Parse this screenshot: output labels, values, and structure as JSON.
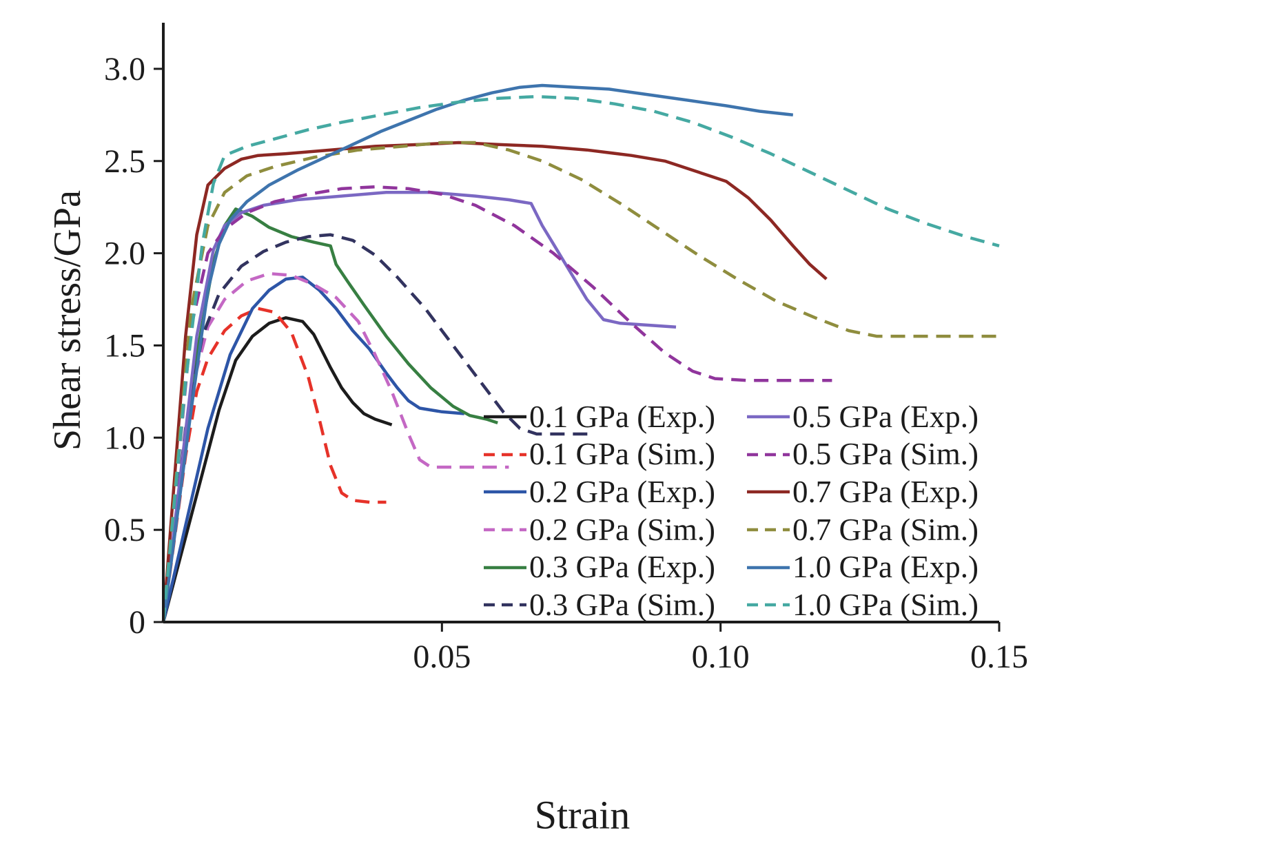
{
  "figure": {
    "background": "#ffffff",
    "text_color": "#1c1c1c"
  },
  "chart_data": {
    "type": "line",
    "title": "",
    "xlabel": "Strain",
    "ylabel": "Shear stress/GPa",
    "xlim": [
      0,
      0.15
    ],
    "ylim": [
      0,
      3.25
    ],
    "grid": false,
    "legend": {
      "columns": 2,
      "frame": false,
      "position": "lower right"
    },
    "xticks": [
      {
        "value": 0.05,
        "label": "0.05"
      },
      {
        "value": 0.1,
        "label": "0.10"
      },
      {
        "value": 0.15,
        "label": "0.15"
      }
    ],
    "yticks": [
      {
        "value": 0,
        "label": "0"
      },
      {
        "value": 0.5,
        "label": "0.5"
      },
      {
        "value": 1.0,
        "label": "1.0"
      },
      {
        "value": 1.5,
        "label": "1.5"
      },
      {
        "value": 2.0,
        "label": "2.0"
      },
      {
        "value": 2.5,
        "label": "2.5"
      },
      {
        "value": 3.0,
        "label": "3.0"
      }
    ],
    "series": [
      {
        "id": "0p1-exp",
        "name": "0.1 GPa (Exp.)",
        "color": "#1c1c1c",
        "style": "solid",
        "points": [
          [
            0,
            0
          ],
          [
            0.01,
            1.15
          ],
          [
            0.013,
            1.42
          ],
          [
            0.016,
            1.55
          ],
          [
            0.019,
            1.62
          ],
          [
            0.022,
            1.65
          ],
          [
            0.025,
            1.63
          ],
          [
            0.027,
            1.56
          ],
          [
            0.0285,
            1.47
          ],
          [
            0.03,
            1.38
          ],
          [
            0.032,
            1.27
          ],
          [
            0.034,
            1.19
          ],
          [
            0.036,
            1.13
          ],
          [
            0.038,
            1.1
          ],
          [
            0.041,
            1.07
          ]
        ]
      },
      {
        "id": "0p1-sim",
        "name": "0.1 GPa (Sim.)",
        "color": "#e63229",
        "style": "dashed",
        "points": [
          [
            0,
            0
          ],
          [
            0.004,
            0.9
          ],
          [
            0.006,
            1.25
          ],
          [
            0.008,
            1.43
          ],
          [
            0.011,
            1.58
          ],
          [
            0.014,
            1.66
          ],
          [
            0.017,
            1.7
          ],
          [
            0.02,
            1.68
          ],
          [
            0.023,
            1.57
          ],
          [
            0.026,
            1.33
          ],
          [
            0.028,
            1.1
          ],
          [
            0.03,
            0.85
          ],
          [
            0.032,
            0.7
          ],
          [
            0.034,
            0.66
          ],
          [
            0.037,
            0.65
          ],
          [
            0.04,
            0.65
          ]
        ]
      },
      {
        "id": "0p2-exp",
        "name": "0.2 GPa (Exp.)",
        "color": "#2d55a7",
        "style": "solid",
        "points": [
          [
            0,
            0
          ],
          [
            0.008,
            1.05
          ],
          [
            0.012,
            1.45
          ],
          [
            0.016,
            1.7
          ],
          [
            0.019,
            1.8
          ],
          [
            0.022,
            1.86
          ],
          [
            0.025,
            1.87
          ],
          [
            0.028,
            1.8
          ],
          [
            0.031,
            1.7
          ],
          [
            0.034,
            1.58
          ],
          [
            0.037,
            1.48
          ],
          [
            0.04,
            1.35
          ],
          [
            0.042,
            1.27
          ],
          [
            0.044,
            1.2
          ],
          [
            0.046,
            1.16
          ],
          [
            0.05,
            1.14
          ],
          [
            0.054,
            1.13
          ]
        ]
      },
      {
        "id": "0p2-sim",
        "name": "0.2 GPa (Sim.)",
        "color": "#c468c4",
        "style": "dashed",
        "points": [
          [
            0,
            0
          ],
          [
            0.005,
            1.25
          ],
          [
            0.008,
            1.6
          ],
          [
            0.011,
            1.75
          ],
          [
            0.015,
            1.85
          ],
          [
            0.019,
            1.89
          ],
          [
            0.023,
            1.88
          ],
          [
            0.027,
            1.83
          ],
          [
            0.031,
            1.76
          ],
          [
            0.035,
            1.63
          ],
          [
            0.038,
            1.45
          ],
          [
            0.041,
            1.25
          ],
          [
            0.044,
            1.02
          ],
          [
            0.046,
            0.88
          ],
          [
            0.048,
            0.84
          ],
          [
            0.053,
            0.84
          ],
          [
            0.058,
            0.84
          ],
          [
            0.062,
            0.84
          ]
        ]
      },
      {
        "id": "0p3-exp",
        "name": "0.3 GPa (Exp.)",
        "color": "#377f42",
        "style": "solid",
        "points": [
          [
            0,
            0
          ],
          [
            0.006,
            1.45
          ],
          [
            0.009,
            1.95
          ],
          [
            0.011,
            2.15
          ],
          [
            0.013,
            2.24
          ],
          [
            0.016,
            2.2
          ],
          [
            0.019,
            2.14
          ],
          [
            0.023,
            2.09
          ],
          [
            0.027,
            2.06
          ],
          [
            0.03,
            2.04
          ],
          [
            0.031,
            1.94
          ],
          [
            0.033,
            1.85
          ],
          [
            0.036,
            1.72
          ],
          [
            0.04,
            1.55
          ],
          [
            0.044,
            1.4
          ],
          [
            0.048,
            1.27
          ],
          [
            0.052,
            1.17
          ],
          [
            0.055,
            1.12
          ],
          [
            0.058,
            1.1
          ],
          [
            0.06,
            1.08
          ]
        ]
      },
      {
        "id": "0p3-sim",
        "name": "0.3 GPa (Sim.)",
        "color": "#32335f",
        "style": "dashed",
        "points": [
          [
            0,
            0
          ],
          [
            0.004,
            1.05
          ],
          [
            0.007,
            1.55
          ],
          [
            0.01,
            1.78
          ],
          [
            0.014,
            1.93
          ],
          [
            0.018,
            2.01
          ],
          [
            0.022,
            2.06
          ],
          [
            0.026,
            2.09
          ],
          [
            0.03,
            2.1
          ],
          [
            0.034,
            2.07
          ],
          [
            0.038,
            1.99
          ],
          [
            0.042,
            1.87
          ],
          [
            0.047,
            1.7
          ],
          [
            0.052,
            1.5
          ],
          [
            0.057,
            1.3
          ],
          [
            0.061,
            1.14
          ],
          [
            0.064,
            1.05
          ],
          [
            0.067,
            1.02
          ],
          [
            0.072,
            1.02
          ],
          [
            0.077,
            1.02
          ]
        ]
      },
      {
        "id": "0p5-exp",
        "name": "0.5 GPa (Exp.)",
        "color": "#7b68c3",
        "style": "solid",
        "points": [
          [
            0,
            0
          ],
          [
            0.006,
            1.55
          ],
          [
            0.009,
            2.02
          ],
          [
            0.011,
            2.15
          ],
          [
            0.014,
            2.22
          ],
          [
            0.018,
            2.26
          ],
          [
            0.024,
            2.29
          ],
          [
            0.032,
            2.31
          ],
          [
            0.04,
            2.33
          ],
          [
            0.048,
            2.33
          ],
          [
            0.056,
            2.31
          ],
          [
            0.062,
            2.29
          ],
          [
            0.066,
            2.27
          ],
          [
            0.068,
            2.15
          ],
          [
            0.07,
            2.05
          ],
          [
            0.073,
            1.9
          ],
          [
            0.076,
            1.75
          ],
          [
            0.079,
            1.64
          ],
          [
            0.082,
            1.62
          ],
          [
            0.087,
            1.61
          ],
          [
            0.092,
            1.6
          ]
        ]
      },
      {
        "id": "0p5-sim",
        "name": "0.5 GPa (Sim.)",
        "color": "#90359c",
        "style": "dashed",
        "points": [
          [
            0,
            0
          ],
          [
            0.005,
            1.6
          ],
          [
            0.008,
            2.0
          ],
          [
            0.011,
            2.13
          ],
          [
            0.015,
            2.22
          ],
          [
            0.02,
            2.28
          ],
          [
            0.026,
            2.32
          ],
          [
            0.032,
            2.35
          ],
          [
            0.038,
            2.36
          ],
          [
            0.044,
            2.35
          ],
          [
            0.05,
            2.32
          ],
          [
            0.056,
            2.26
          ],
          [
            0.063,
            2.15
          ],
          [
            0.07,
            2.0
          ],
          [
            0.077,
            1.82
          ],
          [
            0.084,
            1.62
          ],
          [
            0.09,
            1.46
          ],
          [
            0.095,
            1.36
          ],
          [
            0.099,
            1.32
          ],
          [
            0.105,
            1.31
          ],
          [
            0.112,
            1.31
          ],
          [
            0.12,
            1.31
          ]
        ]
      },
      {
        "id": "0p7-exp",
        "name": "0.7 GPa (Exp.)",
        "color": "#8d2823",
        "style": "solid",
        "points": [
          [
            0,
            0
          ],
          [
            0.004,
            1.55
          ],
          [
            0.006,
            2.1
          ],
          [
            0.008,
            2.37
          ],
          [
            0.011,
            2.46
          ],
          [
            0.014,
            2.51
          ],
          [
            0.017,
            2.53
          ],
          [
            0.022,
            2.54
          ],
          [
            0.03,
            2.56
          ],
          [
            0.038,
            2.58
          ],
          [
            0.046,
            2.59
          ],
          [
            0.053,
            2.6
          ],
          [
            0.06,
            2.59
          ],
          [
            0.068,
            2.58
          ],
          [
            0.076,
            2.56
          ],
          [
            0.084,
            2.53
          ],
          [
            0.09,
            2.5
          ],
          [
            0.096,
            2.44
          ],
          [
            0.101,
            2.39
          ],
          [
            0.105,
            2.3
          ],
          [
            0.109,
            2.18
          ],
          [
            0.113,
            2.04
          ],
          [
            0.116,
            1.94
          ],
          [
            0.119,
            1.86
          ]
        ]
      },
      {
        "id": "0p7-sim",
        "name": "0.7 GPa (Sim.)",
        "color": "#8f8d3e",
        "style": "dashed",
        "points": [
          [
            0,
            0
          ],
          [
            0.005,
            1.7
          ],
          [
            0.008,
            2.15
          ],
          [
            0.011,
            2.33
          ],
          [
            0.015,
            2.42
          ],
          [
            0.02,
            2.47
          ],
          [
            0.027,
            2.52
          ],
          [
            0.035,
            2.56
          ],
          [
            0.043,
            2.58
          ],
          [
            0.05,
            2.6
          ],
          [
            0.056,
            2.6
          ],
          [
            0.062,
            2.56
          ],
          [
            0.068,
            2.5
          ],
          [
            0.075,
            2.4
          ],
          [
            0.082,
            2.27
          ],
          [
            0.089,
            2.13
          ],
          [
            0.096,
            1.99
          ],
          [
            0.103,
            1.86
          ],
          [
            0.11,
            1.74
          ],
          [
            0.117,
            1.65
          ],
          [
            0.123,
            1.58
          ],
          [
            0.128,
            1.55
          ],
          [
            0.135,
            1.55
          ],
          [
            0.143,
            1.55
          ],
          [
            0.15,
            1.55
          ]
        ]
      },
      {
        "id": "1p0-exp",
        "name": "1.0 GPa (Exp.)",
        "color": "#3e74ad",
        "style": "solid",
        "points": [
          [
            0,
            0
          ],
          [
            0.005,
            1.15
          ],
          [
            0.008,
            1.8
          ],
          [
            0.01,
            2.05
          ],
          [
            0.012,
            2.18
          ],
          [
            0.015,
            2.28
          ],
          [
            0.019,
            2.37
          ],
          [
            0.024,
            2.45
          ],
          [
            0.029,
            2.52
          ],
          [
            0.034,
            2.59
          ],
          [
            0.039,
            2.66
          ],
          [
            0.044,
            2.72
          ],
          [
            0.049,
            2.78
          ],
          [
            0.054,
            2.83
          ],
          [
            0.059,
            2.87
          ],
          [
            0.064,
            2.9
          ],
          [
            0.068,
            2.91
          ],
          [
            0.074,
            2.9
          ],
          [
            0.08,
            2.89
          ],
          [
            0.087,
            2.86
          ],
          [
            0.094,
            2.83
          ],
          [
            0.101,
            2.8
          ],
          [
            0.107,
            2.77
          ],
          [
            0.113,
            2.75
          ]
        ]
      },
      {
        "id": "1p0-sim",
        "name": "1.0 GPa (Sim.)",
        "color": "#45a9a2",
        "style": "dashed",
        "points": [
          [
            0,
            0
          ],
          [
            0.004,
            1.3
          ],
          [
            0.007,
            2.05
          ],
          [
            0.009,
            2.38
          ],
          [
            0.011,
            2.53
          ],
          [
            0.015,
            2.58
          ],
          [
            0.02,
            2.62
          ],
          [
            0.026,
            2.67
          ],
          [
            0.032,
            2.71
          ],
          [
            0.039,
            2.75
          ],
          [
            0.046,
            2.79
          ],
          [
            0.053,
            2.82
          ],
          [
            0.06,
            2.84
          ],
          [
            0.067,
            2.85
          ],
          [
            0.074,
            2.84
          ],
          [
            0.081,
            2.81
          ],
          [
            0.088,
            2.77
          ],
          [
            0.095,
            2.71
          ],
          [
            0.102,
            2.63
          ],
          [
            0.109,
            2.54
          ],
          [
            0.116,
            2.44
          ],
          [
            0.123,
            2.34
          ],
          [
            0.13,
            2.24
          ],
          [
            0.137,
            2.16
          ],
          [
            0.144,
            2.09
          ],
          [
            0.15,
            2.04
          ]
        ]
      }
    ]
  }
}
